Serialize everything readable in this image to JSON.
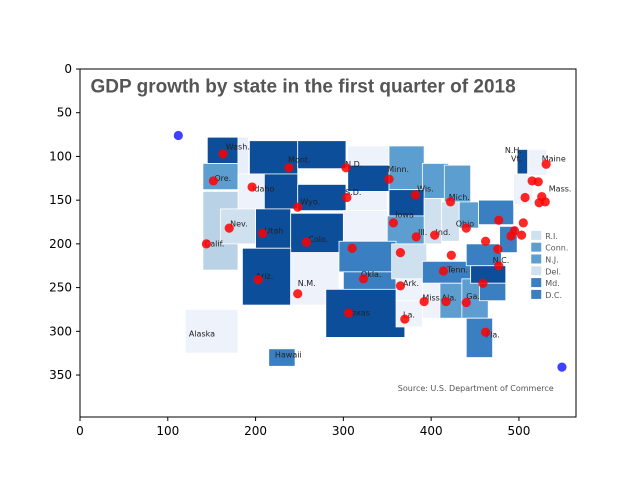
{
  "chart_data": {
    "type": "scatter",
    "title": "",
    "xlabel": "",
    "ylabel": "",
    "xlim": [
      0,
      565
    ],
    "ylim": [
      398,
      0
    ],
    "y_inverted": true,
    "x_ticks": [
      0,
      100,
      200,
      300,
      400,
      500
    ],
    "y_ticks": [
      0,
      50,
      100,
      150,
      200,
      250,
      300,
      350
    ],
    "background_image": {
      "description_free": true,
      "title_text": "GDP growth by state in the first quarter of 2018",
      "source_text": "Source: U.S. Department of Commerce",
      "state_labels": [
        {
          "text": "Wash.",
          "x": 166,
          "y": 92
        },
        {
          "text": "Ore.",
          "x": 153,
          "y": 128
        },
        {
          "text": "Idaho",
          "x": 196,
          "y": 140
        },
        {
          "text": "Mont.",
          "x": 237,
          "y": 107
        },
        {
          "text": "Wyo.",
          "x": 251,
          "y": 155
        },
        {
          "text": "N.D.",
          "x": 302,
          "y": 112
        },
        {
          "text": "S.D.",
          "x": 302,
          "y": 144
        },
        {
          "text": "Minn.",
          "x": 350,
          "y": 118
        },
        {
          "text": "Wis.",
          "x": 384,
          "y": 140
        },
        {
          "text": "Mich.",
          "x": 420,
          "y": 150
        },
        {
          "text": "Nev.",
          "x": 171,
          "y": 180
        },
        {
          "text": "Utah",
          "x": 210,
          "y": 188
        },
        {
          "text": "Colo.",
          "x": 260,
          "y": 198
        },
        {
          "text": "Iowa",
          "x": 359,
          "y": 170
        },
        {
          "text": "Ill.",
          "x": 385,
          "y": 190
        },
        {
          "text": "Ind.",
          "x": 405,
          "y": 190
        },
        {
          "text": "Ohio",
          "x": 428,
          "y": 180
        },
        {
          "text": "Calif.",
          "x": 142,
          "y": 203
        },
        {
          "text": "Ariz.",
          "x": 200,
          "y": 240
        },
        {
          "text": "N.M.",
          "x": 248,
          "y": 248
        },
        {
          "text": "Okla.",
          "x": 320,
          "y": 238
        },
        {
          "text": "Ark.",
          "x": 368,
          "y": 248
        },
        {
          "text": "Tenn.",
          "x": 418,
          "y": 233
        },
        {
          "text": "N.C.",
          "x": 470,
          "y": 222
        },
        {
          "text": "Miss.",
          "x": 390,
          "y": 265
        },
        {
          "text": "Ala.",
          "x": 412,
          "y": 265
        },
        {
          "text": "Ga.",
          "x": 440,
          "y": 263
        },
        {
          "text": "Texas",
          "x": 305,
          "y": 282
        },
        {
          "text": "La.",
          "x": 368,
          "y": 284
        },
        {
          "text": "Fla.",
          "x": 462,
          "y": 307
        },
        {
          "text": "Alaska",
          "x": 124,
          "y": 306
        },
        {
          "text": "Hawaii",
          "x": 222,
          "y": 330
        },
        {
          "text": "N.H.",
          "x": 484,
          "y": 96
        },
        {
          "text": "Vt.",
          "x": 491,
          "y": 106
        },
        {
          "text": "Maine",
          "x": 526,
          "y": 106
        },
        {
          "text": "Mass.",
          "x": 534,
          "y": 140
        }
      ],
      "legend": [
        "R.I.",
        "Conn.",
        "N.J.",
        "Del.",
        "Md.",
        "D.C."
      ]
    },
    "series": [
      {
        "color": "#ff0000",
        "points": [
          {
            "x": 163,
            "y": 97
          },
          {
            "x": 238,
            "y": 113
          },
          {
            "x": 303,
            "y": 113
          },
          {
            "x": 352,
            "y": 126
          },
          {
            "x": 531,
            "y": 109
          },
          {
            "x": 152,
            "y": 128
          },
          {
            "x": 196,
            "y": 135
          },
          {
            "x": 248,
            "y": 158
          },
          {
            "x": 304,
            "y": 147
          },
          {
            "x": 382,
            "y": 144
          },
          {
            "x": 422,
            "y": 152
          },
          {
            "x": 507,
            "y": 147
          },
          {
            "x": 515,
            "y": 128
          },
          {
            "x": 522,
            "y": 129
          },
          {
            "x": 526,
            "y": 146
          },
          {
            "x": 530,
            "y": 152
          },
          {
            "x": 523,
            "y": 153
          },
          {
            "x": 170,
            "y": 182
          },
          {
            "x": 208,
            "y": 188
          },
          {
            "x": 258,
            "y": 198
          },
          {
            "x": 310,
            "y": 205
          },
          {
            "x": 357,
            "y": 176
          },
          {
            "x": 383,
            "y": 192
          },
          {
            "x": 404,
            "y": 190
          },
          {
            "x": 440,
            "y": 182
          },
          {
            "x": 477,
            "y": 173
          },
          {
            "x": 505,
            "y": 176
          },
          {
            "x": 495,
            "y": 185
          },
          {
            "x": 503,
            "y": 190
          },
          {
            "x": 491,
            "y": 191
          },
          {
            "x": 144,
            "y": 200
          },
          {
            "x": 365,
            "y": 210
          },
          {
            "x": 462,
            "y": 197
          },
          {
            "x": 476,
            "y": 206
          },
          {
            "x": 423,
            "y": 213
          },
          {
            "x": 203,
            "y": 241
          },
          {
            "x": 248,
            "y": 257
          },
          {
            "x": 323,
            "y": 240
          },
          {
            "x": 365,
            "y": 248
          },
          {
            "x": 414,
            "y": 231
          },
          {
            "x": 477,
            "y": 225
          },
          {
            "x": 392,
            "y": 266
          },
          {
            "x": 417,
            "y": 266
          },
          {
            "x": 440,
            "y": 267
          },
          {
            "x": 459,
            "y": 245
          },
          {
            "x": 306,
            "y": 279
          },
          {
            "x": 370,
            "y": 286
          },
          {
            "x": 462,
            "y": 301
          }
        ]
      },
      {
        "color": "#1f1fff",
        "points": [
          {
            "x": 112,
            "y": 76
          },
          {
            "x": 549,
            "y": 341
          }
        ]
      }
    ]
  }
}
